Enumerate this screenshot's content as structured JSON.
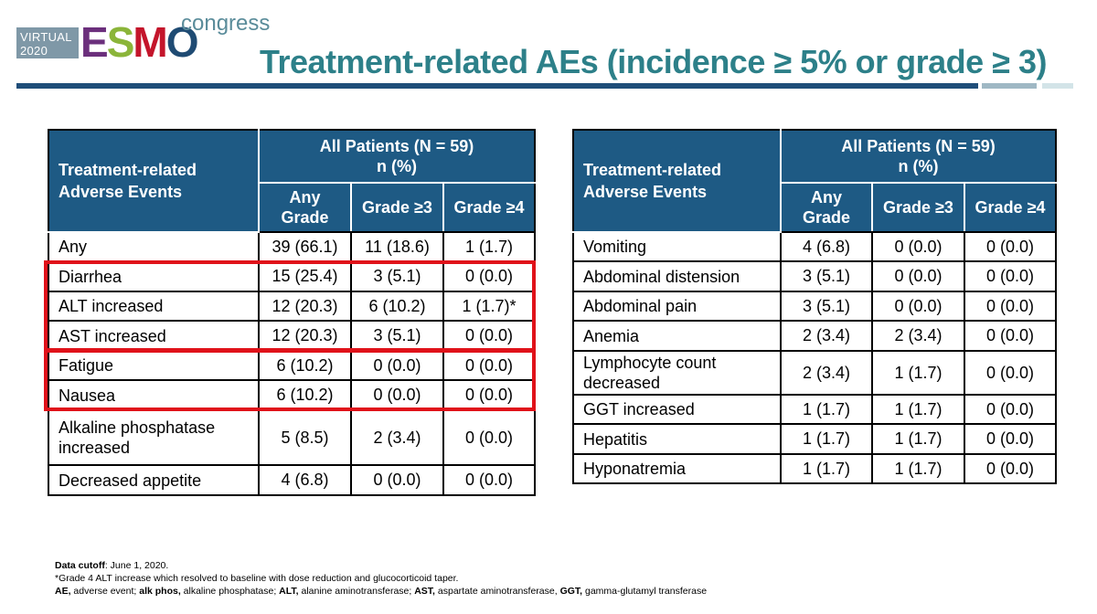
{
  "header": {
    "logo_virtual_line1": "VIRTUAL",
    "logo_virtual_line2": "2020",
    "logo_esmo": [
      "E",
      "S",
      "M",
      "O"
    ],
    "logo_congress": "congress",
    "title": "Treatment-related AEs (incidence ≥ 5% or grade ≥ 3)"
  },
  "colors": {
    "header_fill": "#1e5a84",
    "title": "#2d8089",
    "highlight_box": "#e0121a"
  },
  "table_left": {
    "corner_label": "Treatment-related Adverse Events",
    "group_header_line1": "All Patients (N = 59)",
    "group_header_line2": "n (%)",
    "columns": [
      "Any Grade",
      "Grade ≥3",
      "Grade ≥4"
    ],
    "rows": [
      {
        "event": "Any",
        "any": "39 (66.1)",
        "g3": "11 (18.6)",
        "g4": "1 (1.7)"
      },
      {
        "event": "Diarrhea",
        "any": "15 (25.4)",
        "g3": "3 (5.1)",
        "g4": "0 (0.0)"
      },
      {
        "event": "ALT increased",
        "any": "12 (20.3)",
        "g3": "6 (10.2)",
        "g4": "1 (1.7)*"
      },
      {
        "event": "AST increased",
        "any": "12 (20.3)",
        "g3": "3 (5.1)",
        "g4": "0 (0.0)"
      },
      {
        "event": "Fatigue",
        "any": "6 (10.2)",
        "g3": "0 (0.0)",
        "g4": "0 (0.0)"
      },
      {
        "event": "Nausea",
        "any": "6 (10.2)",
        "g3": "0 (0.0)",
        "g4": "0 (0.0)"
      },
      {
        "event": "Alkaline phosphatase increased",
        "any": "5 (8.5)",
        "g3": "2 (3.4)",
        "g4": "0 (0.0)"
      },
      {
        "event": "Decreased appetite",
        "any": "4 (6.8)",
        "g3": "0 (0.0)",
        "g4": "0 (0.0)"
      }
    ],
    "highlighted_rows": [
      "Diarrhea",
      "ALT increased",
      "AST increased",
      "Fatigue",
      "Nausea"
    ]
  },
  "table_right": {
    "corner_label": "Treatment-related Adverse Events",
    "group_header_line1": "All Patients (N = 59)",
    "group_header_line2": "n (%)",
    "columns": [
      "Any Grade",
      "Grade ≥3",
      "Grade ≥4"
    ],
    "rows": [
      {
        "event": "Vomiting",
        "any": "4 (6.8)",
        "g3": "0 (0.0)",
        "g4": "0 (0.0)"
      },
      {
        "event": "Abdominal distension",
        "any": "3 (5.1)",
        "g3": "0 (0.0)",
        "g4": "0 (0.0)"
      },
      {
        "event": "Abdominal pain",
        "any": "3 (5.1)",
        "g3": "0 (0.0)",
        "g4": "0 (0.0)"
      },
      {
        "event": "Anemia",
        "any": "2 (3.4)",
        "g3": "2 (3.4)",
        "g4": "0 (0.0)"
      },
      {
        "event": "Lymphocyte count decreased",
        "any": "2 (3.4)",
        "g3": "1 (1.7)",
        "g4": "0 (0.0)"
      },
      {
        "event": "GGT increased",
        "any": "1 (1.7)",
        "g3": "1 (1.7)",
        "g4": "0 (0.0)"
      },
      {
        "event": "Hepatitis",
        "any": "1 (1.7)",
        "g3": "1 (1.7)",
        "g4": "0 (0.0)"
      },
      {
        "event": "Hyponatremia",
        "any": "1 (1.7)",
        "g3": "1 (1.7)",
        "g4": "0 (0.0)"
      }
    ]
  },
  "footnotes": {
    "cutoff_label": "Data cutoff",
    "cutoff_value": ": June 1, 2020.",
    "grade4_note": "*Grade 4 ALT increase which resolved to baseline with dose reduction and glucocorticoid taper.",
    "abbreviations": [
      {
        "abbr": "AE,",
        "def": " adverse event; "
      },
      {
        "abbr": "alk phos,",
        "def": " alkaline phosphatase; "
      },
      {
        "abbr": "ALT,",
        "def": " alanine aminotransferase; "
      },
      {
        "abbr": "AST,",
        "def": " aspartate aminotransferase, "
      },
      {
        "abbr": "GGT,",
        "def": " gamma-glutamyl transferase"
      }
    ]
  }
}
